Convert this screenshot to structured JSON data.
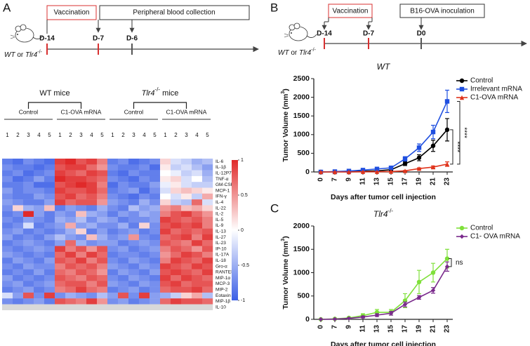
{
  "panel_labels": [
    "A",
    "B",
    "C"
  ],
  "timeline_a": {
    "boxes": [
      "Vaccination",
      "Peripheral blood collection"
    ],
    "days": [
      "D-14",
      "D-7",
      "D-6"
    ],
    "mouse_label": [
      "WT",
      "or",
      "Tlr4",
      "-/-"
    ]
  },
  "timeline_b": {
    "boxes": [
      "Vaccination",
      "B16-OVA inoculation"
    ],
    "days": [
      "D-14",
      "D-7",
      "D0"
    ],
    "mouse_label": [
      "WT",
      "or",
      "Tlr4",
      "-/-"
    ]
  },
  "chart_data": [
    {
      "type": "heatmap",
      "group_titles": [
        [
          "WT mice"
        ],
        [
          "Tlr4",
          "-/-",
          " mice"
        ]
      ],
      "subgroups": [
        "Control",
        "C1-OVA mRNA",
        "Control",
        "C1-OVA mRNA"
      ],
      "columns": [
        "1",
        "2",
        "3",
        "4",
        "5",
        "1",
        "2",
        "3",
        "4",
        "5",
        "1",
        "2",
        "3",
        "4",
        "5",
        "1",
        "2",
        "3",
        "4",
        "5"
      ],
      "rows": [
        "IL-6",
        "IL-1β",
        "IL-12P70",
        "TNF-α",
        "GM-CSF",
        "MCP-1",
        "IFN-γ",
        "IL-4",
        "IL-22",
        "IL-2",
        "IL-5",
        "IL-9",
        "IL-13",
        "IL-27",
        "IL-23",
        "IP-10",
        "IL-17A",
        "IL-18",
        "Gro-α",
        "RANTES",
        "MIP-1α",
        "MCP-3",
        "MIP-2",
        "Eotaxin",
        "MIP-1β",
        "IL-10"
      ],
      "values": [
        [
          -0.8,
          -0.9,
          -0.7,
          -0.8,
          -0.9,
          0.9,
          1,
          0.8,
          0.9,
          0.6,
          -0.8,
          -0.7,
          -0.9,
          -0.8,
          -0.7,
          0.2,
          -0.2,
          -0.3,
          -0.5,
          -0.4
        ],
        [
          -0.7,
          -0.8,
          -0.8,
          -0.9,
          -0.8,
          0.8,
          0.9,
          0.9,
          0.7,
          0.5,
          -0.7,
          -0.8,
          -0.8,
          -0.7,
          -0.9,
          0.1,
          -0.3,
          -0.2,
          -0.4,
          -0.6
        ],
        [
          -0.8,
          -0.7,
          -0.9,
          -0.8,
          -0.7,
          0.9,
          0.8,
          0.7,
          0.9,
          0.8,
          -0.8,
          -0.9,
          -0.7,
          -0.8,
          -0.8,
          0,
          -0.1,
          -0.3,
          -0.2,
          -0.5
        ],
        [
          -0.7,
          -0.9,
          -0.8,
          -0.6,
          -0.8,
          1,
          0.9,
          0.9,
          0.8,
          0.7,
          -0.7,
          -0.8,
          -0.9,
          -0.7,
          -0.8,
          0.1,
          0.2,
          -0.2,
          0,
          -0.4
        ],
        [
          -0.8,
          -0.8,
          -0.7,
          -0.9,
          -0.9,
          0.8,
          0.9,
          1,
          0.9,
          0.6,
          -0.9,
          -0.7,
          -0.8,
          -0.8,
          -0.6,
          -0.1,
          0.1,
          -0.2,
          -0.3,
          -0.3
        ],
        [
          -0.6,
          -0.8,
          -0.7,
          -0.7,
          -0.8,
          0.9,
          0.8,
          0.8,
          0.9,
          0.7,
          -0.8,
          -0.7,
          -0.6,
          -0.9,
          -0.7,
          -0.2,
          0.2,
          0.3,
          0.2,
          0.1
        ],
        [
          -0.7,
          -0.8,
          -0.8,
          -0.6,
          -0.7,
          0.8,
          0.9,
          0.7,
          0.8,
          0.6,
          -0.7,
          -0.8,
          -0.9,
          -0.7,
          -0.8,
          0,
          -0.2,
          0.1,
          -0.3,
          0.4
        ],
        [
          -0.6,
          -0.7,
          -0.8,
          -0.8,
          -0.6,
          0.9,
          0.7,
          0.8,
          0.8,
          0.5,
          -0.6,
          -0.7,
          -0.8,
          -0.5,
          -0.7,
          0.2,
          -0.3,
          -0.4,
          0.7,
          -0.2
        ],
        [
          -0.7,
          0.2,
          -0.5,
          -0.6,
          0.3,
          -0.8,
          -0.6,
          -0.7,
          -0.8,
          -0.5,
          -0.7,
          -0.8,
          -0.4,
          -0.6,
          -0.5,
          0.5,
          0.6,
          0.3,
          0.4,
          0.2
        ],
        [
          -0.8,
          -0.7,
          1,
          -0.6,
          -0.8,
          -0.6,
          -0.7,
          0.3,
          -0.5,
          -0.6,
          -0.8,
          -0.6,
          -0.7,
          -0.5,
          -0.6,
          0.6,
          0.8,
          0.9,
          0.7,
          0.5
        ],
        [
          -0.7,
          -0.8,
          -0.6,
          -0.7,
          -0.8,
          -0.5,
          -0.6,
          -0.4,
          -0.7,
          -0.5,
          -0.6,
          -0.8,
          -0.7,
          -0.7,
          -0.6,
          0.9,
          0.8,
          0.7,
          0.8,
          0.6
        ],
        [
          -0.8,
          -0.7,
          -0.2,
          -0.8,
          -0.7,
          -0.6,
          0.4,
          -0.6,
          -0.5,
          -0.7,
          -0.7,
          -0.5,
          -0.8,
          0.2,
          -0.7,
          0.8,
          0.9,
          0.8,
          0.9,
          0.6
        ],
        [
          -0.7,
          -0.6,
          -0.8,
          -0.7,
          -0.8,
          -0.7,
          -0.5,
          0.2,
          -0.8,
          -0.6,
          -0.8,
          -0.7,
          -0.6,
          -0.8,
          -0.7,
          0.9,
          0.7,
          0.8,
          0.7,
          0.8
        ],
        [
          -0.6,
          -0.8,
          -0.7,
          -0.8,
          -0.6,
          -0.4,
          -0.6,
          -0.7,
          0.3,
          -0.5,
          -0.7,
          -0.6,
          0.5,
          -0.7,
          -0.8,
          0.7,
          0.8,
          0.9,
          0.6,
          0.9
        ],
        [
          -0.8,
          -0.7,
          -0.6,
          -0.7,
          -0.8,
          -0.6,
          0.7,
          -0.5,
          -0.7,
          -0.6,
          -0.6,
          -0.8,
          -0.7,
          -0.6,
          -0.7,
          0.8,
          0.7,
          0.6,
          0.9,
          0.7
        ],
        [
          -0.7,
          -0.8,
          -0.7,
          -0.6,
          -0.7,
          0.9,
          0.6,
          0.8,
          0.5,
          0.8,
          -0.7,
          -0.6,
          -0.8,
          -0.7,
          -0.6,
          0.6,
          0.8,
          0.7,
          0.5,
          0.8
        ],
        [
          -0.6,
          -0.7,
          -0.8,
          -0.7,
          -0.8,
          0.7,
          0.9,
          0.6,
          0.9,
          0.7,
          -0.8,
          -0.7,
          -0.7,
          -0.8,
          -0.7,
          0.5,
          0.7,
          0.9,
          0.8,
          0.6
        ],
        [
          -0.8,
          -0.6,
          -0.7,
          -0.8,
          -0.6,
          0.8,
          0.7,
          0.9,
          0.6,
          0.8,
          -0.7,
          -0.8,
          -0.6,
          -0.7,
          -0.8,
          0.6,
          0.9,
          0.8,
          0.7,
          0.9
        ],
        [
          -0.7,
          -0.8,
          -0.6,
          -0.7,
          -0.7,
          0.6,
          0.8,
          0.7,
          0.8,
          0.6,
          -0.6,
          -0.7,
          -0.8,
          -0.6,
          -0.7,
          0.9,
          0.8,
          0.7,
          0.9,
          0.8
        ],
        [
          -0.8,
          -0.7,
          -0.8,
          -0.6,
          -0.8,
          0.7,
          0.6,
          0.8,
          0.7,
          0.5,
          -0.8,
          -0.6,
          -0.7,
          -0.8,
          -0.6,
          0.8,
          0.9,
          0.8,
          0.7,
          0.9
        ],
        [
          -0.6,
          -0.8,
          -0.7,
          -0.8,
          -0.7,
          0.8,
          0.7,
          0.6,
          0.8,
          0.7,
          -0.7,
          -0.8,
          -0.6,
          -0.7,
          -0.8,
          0.9,
          0.7,
          0.9,
          0.8,
          0.7
        ],
        [
          -0.7,
          -0.6,
          -0.8,
          -0.7,
          -0.6,
          0.7,
          0.8,
          0.8,
          0.6,
          0.8,
          -0.6,
          -0.7,
          -0.8,
          -0.6,
          -0.7,
          0.8,
          0.9,
          0.7,
          0.8,
          0.8
        ],
        [
          -0.8,
          -0.7,
          -0.6,
          -0.8,
          -0.7,
          0.6,
          0.7,
          0.9,
          0.7,
          0.6,
          -0.8,
          -0.7,
          -0.6,
          -0.8,
          -0.7,
          0.7,
          0.8,
          0.8,
          0.9,
          0.7
        ],
        [
          -0.2,
          -0.6,
          0.8,
          -0.7,
          0.9,
          -0.7,
          -0.5,
          -0.6,
          -0.7,
          -0.4,
          -0.6,
          0.8,
          -0.7,
          0.9,
          -0.6,
          -0.5,
          -0.3,
          0.2,
          0.4,
          -0.4
        ],
        [
          -0.7,
          -0.8,
          -0.7,
          -0.6,
          -0.8,
          0.8,
          0.7,
          0.6,
          0.9,
          0.5,
          -0.7,
          -0.6,
          -0.8,
          -0.7,
          -0.6,
          0.7,
          0.9,
          0.8,
          0.8,
          0.7
        ],
        [
          null,
          null,
          null,
          null,
          null,
          null,
          null,
          null,
          null,
          null,
          null,
          null,
          null,
          null,
          null,
          null,
          null,
          null,
          null,
          null
        ]
      ],
      "zlim": [
        -1,
        1
      ],
      "zticks": [
        1,
        0.5,
        0,
        -0.5,
        -1
      ],
      "colors": {
        "low": "#3b5fe6",
        "mid": "#ffffff",
        "high": "#e02a2a",
        "missing": "#d9d9d9"
      }
    },
    {
      "type": "line",
      "title": [
        "WT"
      ],
      "categories": [
        "0",
        "7",
        "9",
        "11",
        "13",
        "15",
        "17",
        "19",
        "21",
        "23"
      ],
      "xlabel": "Days after tumor cell injection",
      "ylabel": [
        "Tumor Volume  (mm",
        "3",
        ")"
      ],
      "ylim": [
        0,
        2500
      ],
      "yticks": [
        0,
        500,
        1000,
        1500,
        2000,
        2500
      ],
      "series": [
        {
          "name": "Control",
          "color": "#000000",
          "marker": "circle",
          "values": [
            0,
            5,
            10,
            20,
            30,
            60,
            220,
            380,
            700,
            1130
          ],
          "errors": [
            0,
            2,
            5,
            10,
            15,
            20,
            50,
            80,
            150,
            300
          ]
        },
        {
          "name": "Irrelevant mRNA",
          "color": "#1f4fe0",
          "marker": "square",
          "values": [
            0,
            10,
            25,
            50,
            80,
            110,
            350,
            650,
            1070,
            1890
          ],
          "errors": [
            0,
            5,
            10,
            20,
            30,
            30,
            60,
            100,
            180,
            300
          ]
        },
        {
          "name": "C1-OVA mRNA",
          "color": "#e0341c",
          "marker": "triangle",
          "values": [
            0,
            0,
            0,
            5,
            5,
            10,
            30,
            90,
            130,
            210
          ],
          "errors": [
            0,
            0,
            0,
            3,
            3,
            5,
            10,
            20,
            30,
            60
          ]
        }
      ],
      "annotations": [
        "****",
        "****"
      ]
    },
    {
      "type": "line",
      "title": [
        "Tlr4",
        "-/-"
      ],
      "categories": [
        "0",
        "7",
        "9",
        "11",
        "13",
        "15",
        "17",
        "19",
        "21",
        "23"
      ],
      "xlabel": "Days after tumor cell injection",
      "ylabel": [
        "Tumor Volume  (mm",
        "3",
        ")"
      ],
      "ylim": [
        0,
        2000
      ],
      "yticks": [
        0,
        500,
        1000,
        1500,
        2000
      ],
      "series": [
        {
          "name": "Control",
          "color": "#7fe03a",
          "marker": "circle",
          "values": [
            0,
            10,
            30,
            80,
            150,
            150,
            400,
            800,
            1000,
            1300
          ],
          "errors": [
            0,
            10,
            20,
            40,
            60,
            60,
            150,
            250,
            200,
            200
          ]
        },
        {
          "name": "C1- OVA mRNA",
          "color": "#7a2a8c",
          "marker": "diamond",
          "values": [
            0,
            5,
            20,
            50,
            90,
            130,
            320,
            470,
            620,
            1130
          ],
          "errors": [
            0,
            5,
            10,
            20,
            30,
            40,
            50,
            40,
            60,
            100
          ]
        }
      ],
      "annotations": [
        "ns"
      ]
    }
  ]
}
